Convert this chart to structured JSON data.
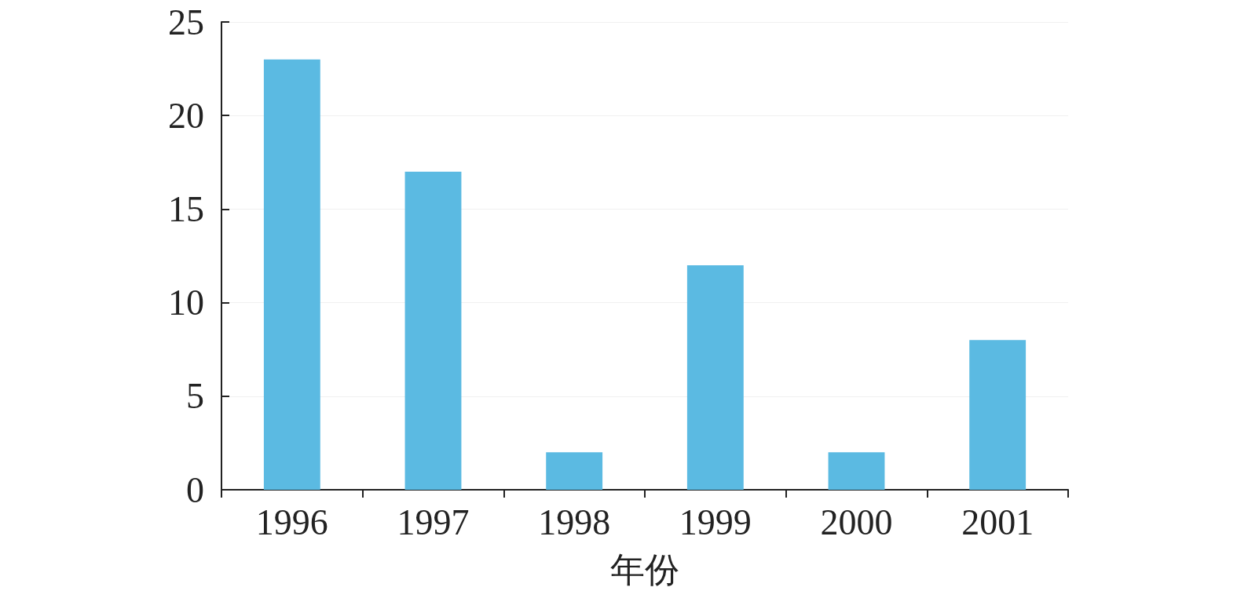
{
  "chart_data": {
    "type": "bar",
    "xlabel": "年份",
    "categories": [
      "1996",
      "1997",
      "1998",
      "1999",
      "2000",
      "2001"
    ],
    "values": [
      23,
      17,
      2,
      12,
      2,
      8
    ],
    "color": "#5bbae2",
    "ylim": [
      0,
      25
    ],
    "yticks": [
      0,
      5,
      10,
      15,
      20,
      25
    ],
    "grid": "y"
  }
}
